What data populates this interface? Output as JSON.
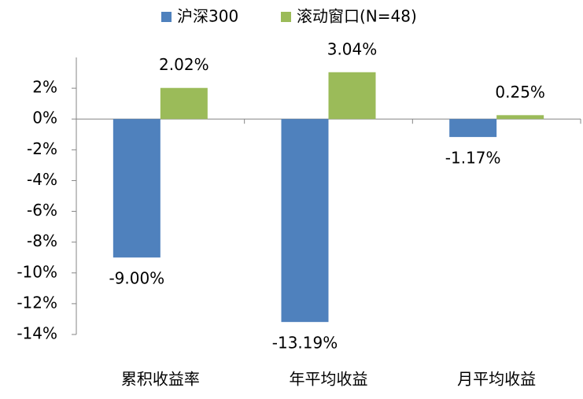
{
  "chart_data": {
    "type": "bar",
    "categories": [
      "累积收益率",
      "年平均收益",
      "月平均收益"
    ],
    "series": [
      {
        "name": "沪深300",
        "color": "#4f81bd",
        "values": [
          -9.0,
          -13.19,
          -1.17
        ],
        "value_labels": [
          "-9.00%",
          "-13.19%",
          "-1.17%"
        ]
      },
      {
        "name": "滚动窗口(N=48)",
        "color": "#9bbb59",
        "values": [
          2.02,
          3.04,
          0.25
        ],
        "value_labels": [
          "2.02%",
          "3.04%",
          "0.25%"
        ]
      }
    ],
    "ylim": [
      -14,
      4
    ],
    "yticks": [
      {
        "value": -14,
        "label": "-14%"
      },
      {
        "value": -12,
        "label": "-12%"
      },
      {
        "value": -10,
        "label": "-10%"
      },
      {
        "value": -8,
        "label": "-8%"
      },
      {
        "value": -6,
        "label": "-6%"
      },
      {
        "value": -4,
        "label": "-4%"
      },
      {
        "value": -2,
        "label": "-2%"
      },
      {
        "value": 0,
        "label": "0%"
      },
      {
        "value": 2,
        "label": "2%"
      }
    ],
    "legend": "top"
  }
}
